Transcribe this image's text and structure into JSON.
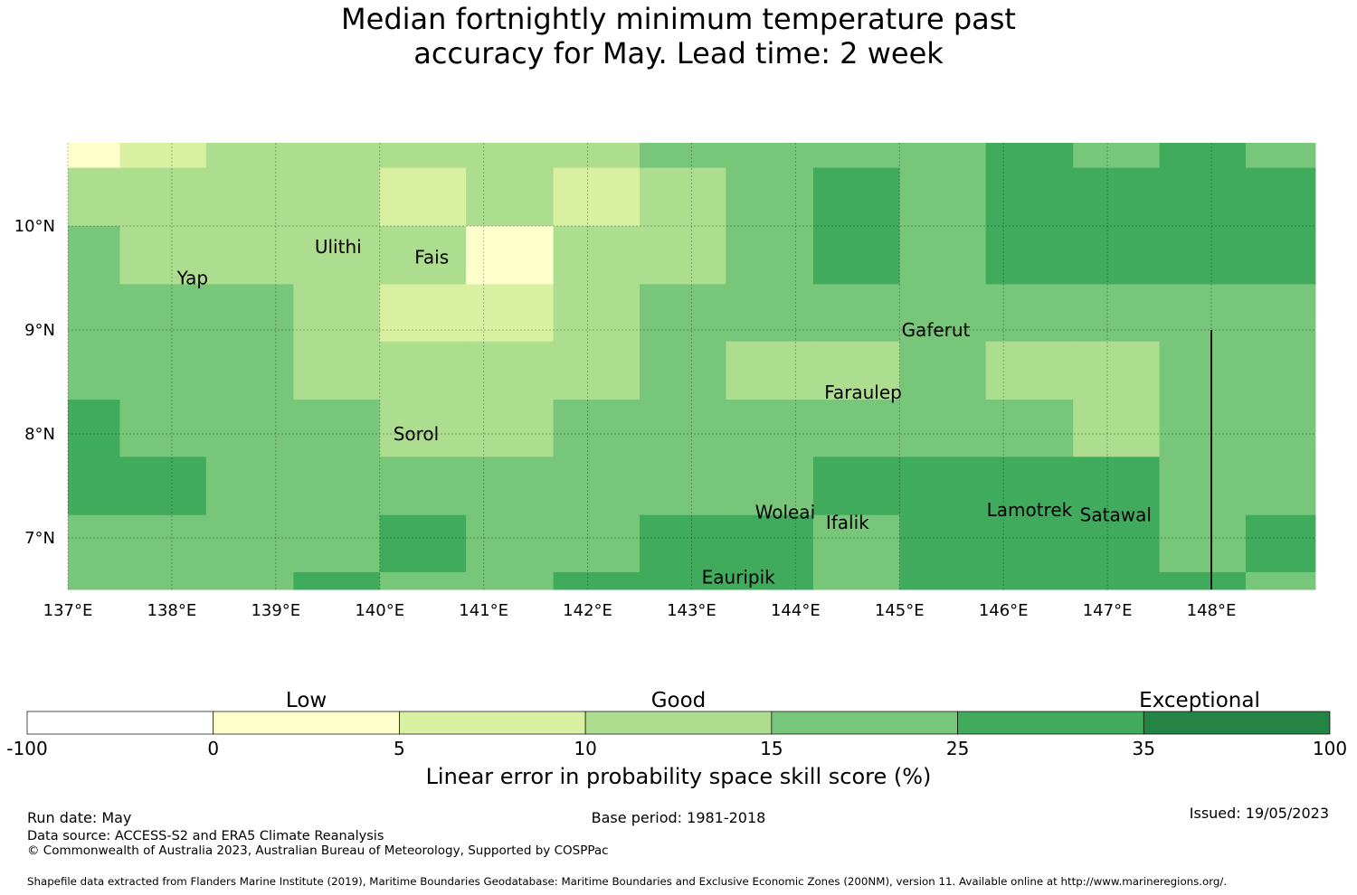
{
  "title_line1": "Median fortnightly minimum temperature past",
  "title_line2": "accuracy for May. Lead time: 2 week",
  "map": {
    "lon_range": [
      137.0,
      149.0
    ],
    "lat_range": [
      6.5,
      10.8
    ],
    "lon_ticks": [
      {
        "value": 137,
        "label": "137°E"
      },
      {
        "value": 138,
        "label": "138°E"
      },
      {
        "value": 139,
        "label": "139°E"
      },
      {
        "value": 140,
        "label": "140°E"
      },
      {
        "value": 141,
        "label": "141°E"
      },
      {
        "value": 142,
        "label": "142°E"
      },
      {
        "value": 143,
        "label": "143°E"
      },
      {
        "value": 144,
        "label": "144°E"
      },
      {
        "value": 145,
        "label": "145°E"
      },
      {
        "value": 146,
        "label": "146°E"
      },
      {
        "value": 147,
        "label": "147°E"
      },
      {
        "value": 148,
        "label": "148°E"
      }
    ],
    "lat_ticks": [
      {
        "value": 10,
        "label": "10°N"
      },
      {
        "value": 9,
        "label": "9°N"
      },
      {
        "value": 8,
        "label": "8°N"
      },
      {
        "value": 7,
        "label": "7°N"
      }
    ],
    "grid": true,
    "grid_lon_edges": [
      137.0,
      137.5,
      138.33,
      139.17,
      140.0,
      140.83,
      141.67,
      142.5,
      143.33,
      144.17,
      145.0,
      145.83,
      146.67,
      147.5,
      148.33,
      149.0
    ],
    "grid_lat_edges": [
      10.8,
      10.56,
      10.0,
      9.44,
      8.89,
      8.33,
      7.78,
      7.22,
      6.67,
      6.5
    ],
    "skill_classes": [
      [
        1,
        2,
        3,
        3,
        3,
        3,
        3,
        4,
        4,
        4,
        4,
        5,
        4,
        5,
        4
      ],
      [
        3,
        3,
        3,
        3,
        2,
        3,
        2,
        3,
        4,
        5,
        4,
        5,
        5,
        5,
        5
      ],
      [
        4,
        3,
        3,
        3,
        3,
        1,
        3,
        3,
        4,
        5,
        4,
        5,
        5,
        5,
        5
      ],
      [
        4,
        4,
        4,
        3,
        2,
        2,
        3,
        4,
        4,
        4,
        4,
        4,
        4,
        4,
        4
      ],
      [
        4,
        4,
        4,
        3,
        3,
        3,
        3,
        4,
        3,
        3,
        4,
        3,
        3,
        4,
        4
      ],
      [
        5,
        4,
        4,
        4,
        3,
        3,
        4,
        4,
        4,
        4,
        4,
        4,
        3,
        4,
        4
      ],
      [
        5,
        5,
        4,
        4,
        4,
        4,
        4,
        4,
        4,
        5,
        5,
        5,
        5,
        4,
        4
      ],
      [
        4,
        4,
        4,
        4,
        5,
        4,
        4,
        5,
        5,
        4,
        5,
        5,
        5,
        4,
        5
      ],
      [
        4,
        4,
        4,
        5,
        4,
        4,
        5,
        5,
        5,
        4,
        5,
        5,
        5,
        5,
        4
      ]
    ],
    "places": [
      {
        "name": "Yap",
        "lon": 138.2,
        "lat": 9.5
      },
      {
        "name": "Ulithi",
        "lon": 139.6,
        "lat": 9.8
      },
      {
        "name": "Fais",
        "lon": 140.5,
        "lat": 9.7
      },
      {
        "name": "Gaferut",
        "lon": 145.35,
        "lat": 9.0
      },
      {
        "name": "Faraulep",
        "lon": 144.65,
        "lat": 8.4
      },
      {
        "name": "Sorol",
        "lon": 140.35,
        "lat": 8.0
      },
      {
        "name": "Woleai",
        "lon": 143.9,
        "lat": 7.25
      },
      {
        "name": "Ifalik",
        "lon": 144.5,
        "lat": 7.15
      },
      {
        "name": "Lamotrek",
        "lon": 146.25,
        "lat": 7.27
      },
      {
        "name": "Satawal",
        "lon": 147.08,
        "lat": 7.22
      },
      {
        "name": "Eauripik",
        "lon": 143.45,
        "lat": 6.62
      }
    ],
    "boundary_lon": 148.0,
    "boundary_lat_top": 9.0
  },
  "colorbar": {
    "colors": [
      "#ffffff",
      "#ffffcc",
      "#d9f0a3",
      "#addd8e",
      "#78c679",
      "#41ab5d",
      "#238443"
    ],
    "ticks": [
      "-100",
      "0",
      "5",
      "10",
      "15",
      "25",
      "35",
      "100"
    ],
    "categories": [
      {
        "label": "Low",
        "center_index": 1.5
      },
      {
        "label": "Good",
        "center_index": 3.5
      },
      {
        "label": "Exceptional",
        "center_index": 6.3
      }
    ],
    "label": "Linear error in probability space skill score (%)"
  },
  "footer": {
    "run_date": "Run date: May",
    "base_period": "Base period: 1981-2018",
    "issued": "Issued: 19/05/2023",
    "data_source": "Data source: ACCESS-S2 and ERA5 Climate Reanalysis",
    "copyright": "© Commonwealth of Australia 2023, Australian Bureau of Meteorology, Supported by COSPPac",
    "shapefile": "Shapefile data extracted from Flanders Marine Institute (2019), Maritime Boundaries Geodatabase: Maritime Boundaries and Exclusive Economic Zones (200NM), version 11. Available online at http://www.marineregions.org/."
  }
}
